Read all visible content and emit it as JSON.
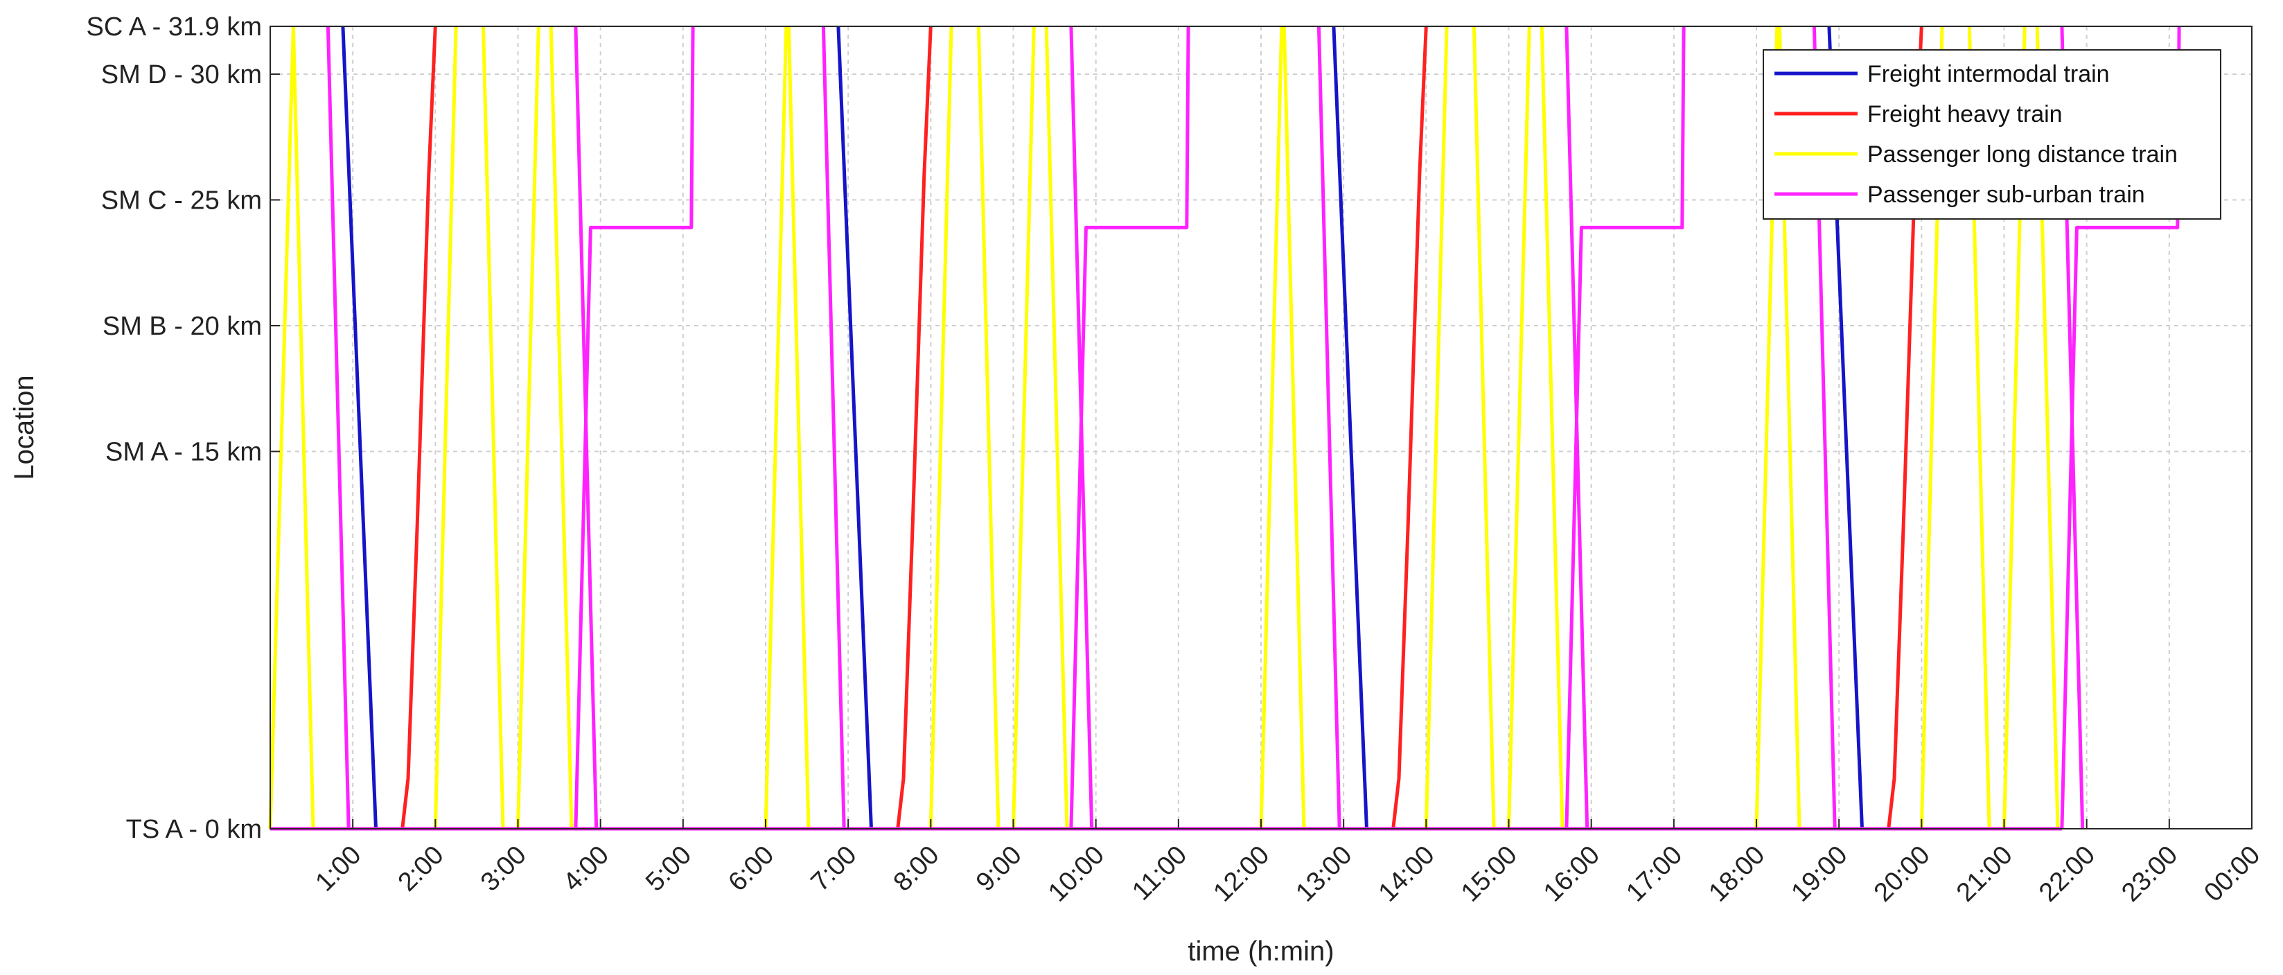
{
  "chart_data": {
    "type": "line",
    "title": "",
    "xlabel": "time (h:min)",
    "ylabel": "Location",
    "xlim": [
      0,
      24
    ],
    "ylim": [
      0,
      31.9
    ],
    "grid": true,
    "legend_position": "top-right",
    "x_ticks": [
      {
        "value": 1,
        "label": "1:00"
      },
      {
        "value": 2,
        "label": "2:00"
      },
      {
        "value": 3,
        "label": "3:00"
      },
      {
        "value": 4,
        "label": "4:00"
      },
      {
        "value": 5,
        "label": "5:00"
      },
      {
        "value": 6,
        "label": "6:00"
      },
      {
        "value": 7,
        "label": "7:00"
      },
      {
        "value": 8,
        "label": "8:00"
      },
      {
        "value": 9,
        "label": "9:00"
      },
      {
        "value": 10,
        "label": "10:00"
      },
      {
        "value": 11,
        "label": "11:00"
      },
      {
        "value": 12,
        "label": "12:00"
      },
      {
        "value": 13,
        "label": "13:00"
      },
      {
        "value": 14,
        "label": "14:00"
      },
      {
        "value": 15,
        "label": "15:00"
      },
      {
        "value": 16,
        "label": "16:00"
      },
      {
        "value": 17,
        "label": "17:00"
      },
      {
        "value": 18,
        "label": "18:00"
      },
      {
        "value": 19,
        "label": "19:00"
      },
      {
        "value": 20,
        "label": "20:00"
      },
      {
        "value": 21,
        "label": "21:00"
      },
      {
        "value": 22,
        "label": "22:00"
      },
      {
        "value": 23,
        "label": "23:00"
      },
      {
        "value": 24,
        "label": "00:00"
      }
    ],
    "y_ticks": [
      {
        "value": 0,
        "label": "TS A - 0 km"
      },
      {
        "value": 15,
        "label": "SM A - 15 km"
      },
      {
        "value": 20,
        "label": "SM B - 20 km"
      },
      {
        "value": 25,
        "label": "SM C - 25 km"
      },
      {
        "value": 30,
        "label": "SM D - 30 km"
      },
      {
        "value": 31.9,
        "label": "SC A - 31.9 km"
      }
    ],
    "series": [
      {
        "name": "Freight intermodal train",
        "color": "#1515c8",
        "runs": [
          [
            [
              0.88,
              31.9
            ],
            [
              1.28,
              0
            ]
          ],
          [
            [
              6.88,
              31.9
            ],
            [
              7.28,
              0
            ]
          ],
          [
            [
              12.88,
              31.9
            ],
            [
              13.28,
              0
            ]
          ],
          [
            [
              18.88,
              31.9
            ],
            [
              19.28,
              0
            ]
          ]
        ]
      },
      {
        "name": "Freight heavy train",
        "color": "#ff2020",
        "runs": [
          [
            [
              1.6,
              0
            ],
            [
              1.67,
              2
            ],
            [
              1.78,
              12
            ],
            [
              1.92,
              26
            ],
            [
              2.0,
              31.9
            ]
          ],
          [
            [
              7.6,
              0
            ],
            [
              7.67,
              2
            ],
            [
              7.78,
              12
            ],
            [
              7.92,
              26
            ],
            [
              8.0,
              31.9
            ]
          ],
          [
            [
              13.6,
              0
            ],
            [
              13.67,
              2
            ],
            [
              13.78,
              12
            ],
            [
              13.92,
              26
            ],
            [
              14.0,
              31.9
            ]
          ],
          [
            [
              19.6,
              0
            ],
            [
              19.67,
              2
            ],
            [
              19.78,
              12
            ],
            [
              19.92,
              26
            ],
            [
              20.0,
              31.9
            ]
          ]
        ]
      },
      {
        "name": "Passenger long distance train",
        "color": "#ffff00",
        "runs": [
          [
            [
              0.0,
              0
            ],
            [
              0.28,
              31.9
            ]
          ],
          [
            [
              0.28,
              31.9
            ],
            [
              0.52,
              0
            ]
          ],
          [
            [
              2.0,
              0
            ],
            [
              2.25,
              31.9
            ]
          ],
          [
            [
              2.58,
              31.9
            ],
            [
              2.82,
              0
            ]
          ],
          [
            [
              3.0,
              0
            ],
            [
              3.25,
              31.9
            ]
          ],
          [
            [
              3.4,
              31.9
            ],
            [
              3.65,
              0
            ]
          ],
          [
            [
              6.0,
              0
            ],
            [
              6.25,
              31.9
            ]
          ],
          [
            [
              6.28,
              31.9
            ],
            [
              6.52,
              0
            ]
          ],
          [
            [
              8.0,
              0
            ],
            [
              8.25,
              31.9
            ]
          ],
          [
            [
              8.58,
              31.9
            ],
            [
              8.82,
              0
            ]
          ],
          [
            [
              9.0,
              0
            ],
            [
              9.25,
              31.9
            ]
          ],
          [
            [
              9.4,
              31.9
            ],
            [
              9.65,
              0
            ]
          ],
          [
            [
              12.0,
              0
            ],
            [
              12.25,
              31.9
            ]
          ],
          [
            [
              12.28,
              31.9
            ],
            [
              12.52,
              0
            ]
          ],
          [
            [
              14.0,
              0
            ],
            [
              14.25,
              31.9
            ]
          ],
          [
            [
              14.58,
              31.9
            ],
            [
              14.82,
              0
            ]
          ],
          [
            [
              15.0,
              0
            ],
            [
              15.25,
              31.9
            ]
          ],
          [
            [
              15.4,
              31.9
            ],
            [
              15.65,
              0
            ]
          ],
          [
            [
              18.0,
              0
            ],
            [
              18.25,
              31.9
            ]
          ],
          [
            [
              18.28,
              31.9
            ],
            [
              18.52,
              0
            ]
          ],
          [
            [
              20.0,
              0
            ],
            [
              20.25,
              31.9
            ]
          ],
          [
            [
              20.58,
              31.9
            ],
            [
              20.82,
              0
            ]
          ],
          [
            [
              21.0,
              0
            ],
            [
              21.25,
              31.9
            ]
          ],
          [
            [
              21.4,
              31.9
            ],
            [
              21.65,
              0
            ]
          ]
        ]
      },
      {
        "name": "Passenger sub-urban train",
        "color": "#ff22ff",
        "runs": [
          [
            [
              0.7,
              31.9
            ],
            [
              0.95,
              0
            ]
          ],
          [
            [
              3.7,
              31.9
            ],
            [
              3.95,
              0
            ]
          ],
          [
            [
              3.7,
              0
            ],
            [
              3.88,
              23.9
            ],
            [
              5.1,
              23.9
            ],
            [
              5.12,
              31.9
            ]
          ],
          [
            [
              6.7,
              31.9
            ],
            [
              6.95,
              0
            ]
          ],
          [
            [
              9.7,
              31.9
            ],
            [
              9.95,
              0
            ]
          ],
          [
            [
              9.7,
              0
            ],
            [
              9.88,
              23.9
            ],
            [
              11.1,
              23.9
            ],
            [
              11.12,
              31.9
            ]
          ],
          [
            [
              12.7,
              31.9
            ],
            [
              12.95,
              0
            ]
          ],
          [
            [
              15.7,
              31.9
            ],
            [
              15.95,
              0
            ]
          ],
          [
            [
              15.7,
              0
            ],
            [
              15.88,
              23.9
            ],
            [
              17.1,
              23.9
            ],
            [
              17.12,
              31.9
            ]
          ],
          [
            [
              18.7,
              31.9
            ],
            [
              18.95,
              0
            ]
          ],
          [
            [
              21.7,
              31.9
            ],
            [
              21.95,
              0
            ]
          ],
          [
            [
              21.7,
              0
            ],
            [
              21.88,
              23.9
            ],
            [
              23.1,
              23.9
            ],
            [
              23.12,
              31.9
            ]
          ],
          [
            [
              0.0,
              0
            ],
            [
              21.7,
              0
            ]
          ]
        ]
      }
    ]
  }
}
